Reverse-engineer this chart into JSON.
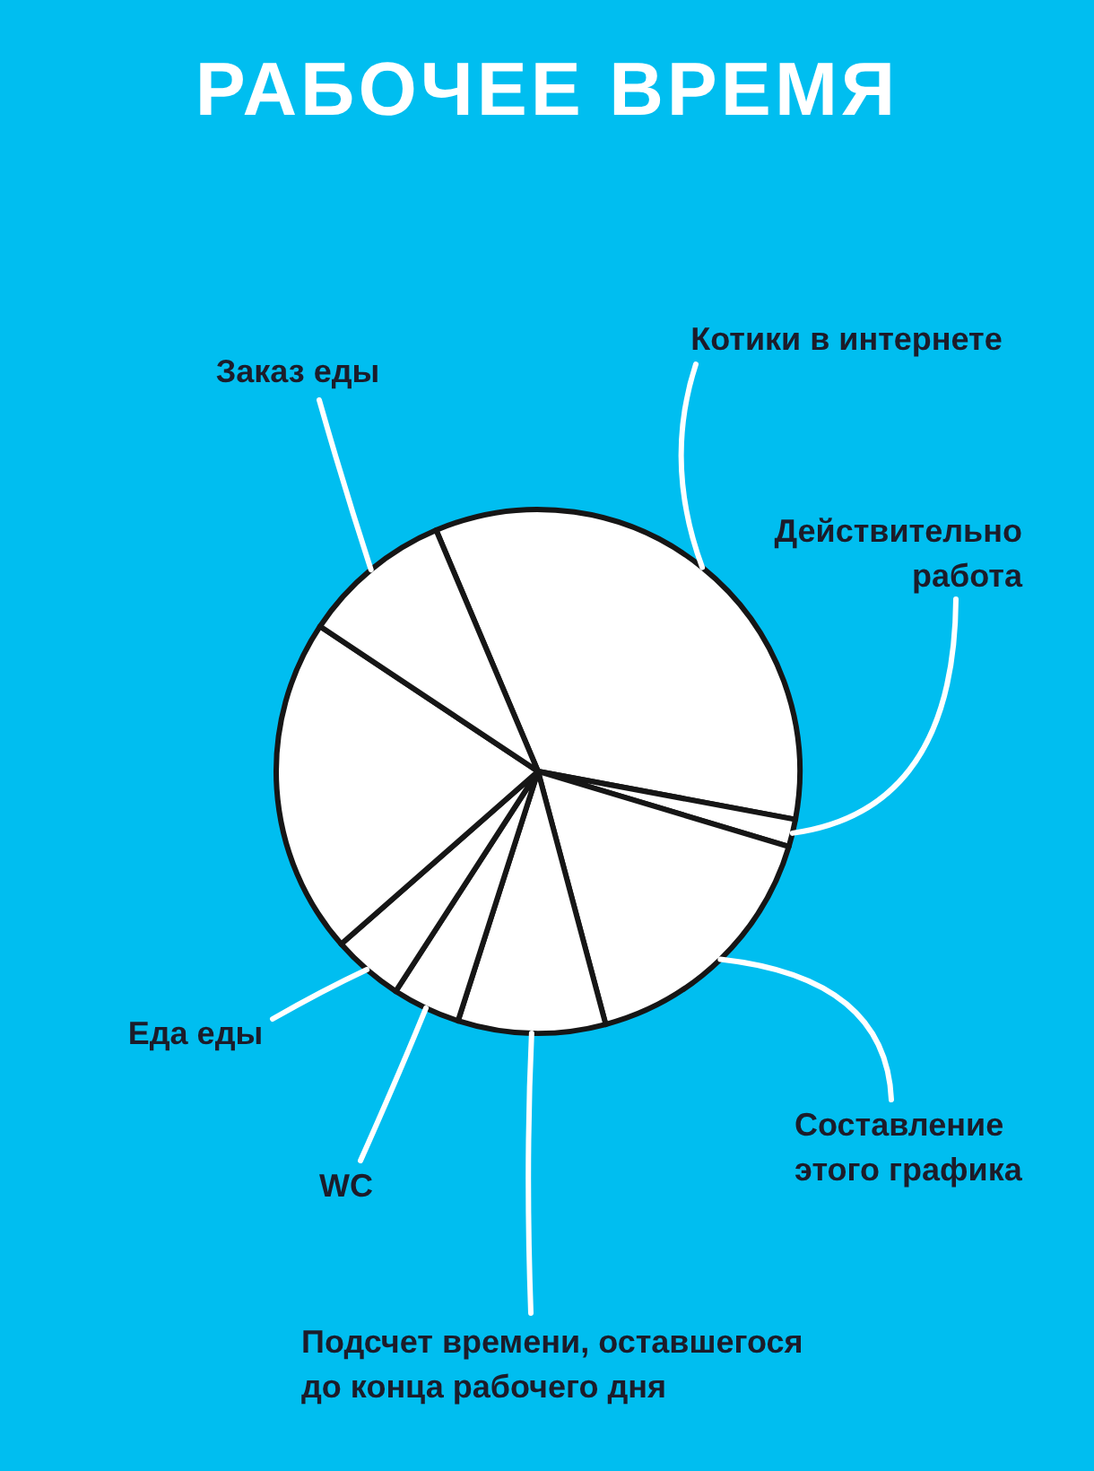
{
  "chart_data": {
    "type": "pie",
    "title": "РАБОЧЕЕ ВРЕМЯ",
    "categories": [
      "Котики в интернете",
      "Действительно работа",
      "Составление этого графика",
      "Подсчет времени, оставшегося до конца рабочего дня",
      "WC",
      "Еда еды",
      null,
      "Заказ еды"
    ],
    "values": [
      34.3,
      1.7,
      16.2,
      9.1,
      4.2,
      4.4,
      20.8,
      9.3
    ],
    "colors": [
      "#ffffff",
      "#ffffff",
      "#ffffff",
      "#ffffff",
      "#ffffff",
      "#ffffff",
      "#ffffff",
      "#ffffff"
    ]
  }
}
